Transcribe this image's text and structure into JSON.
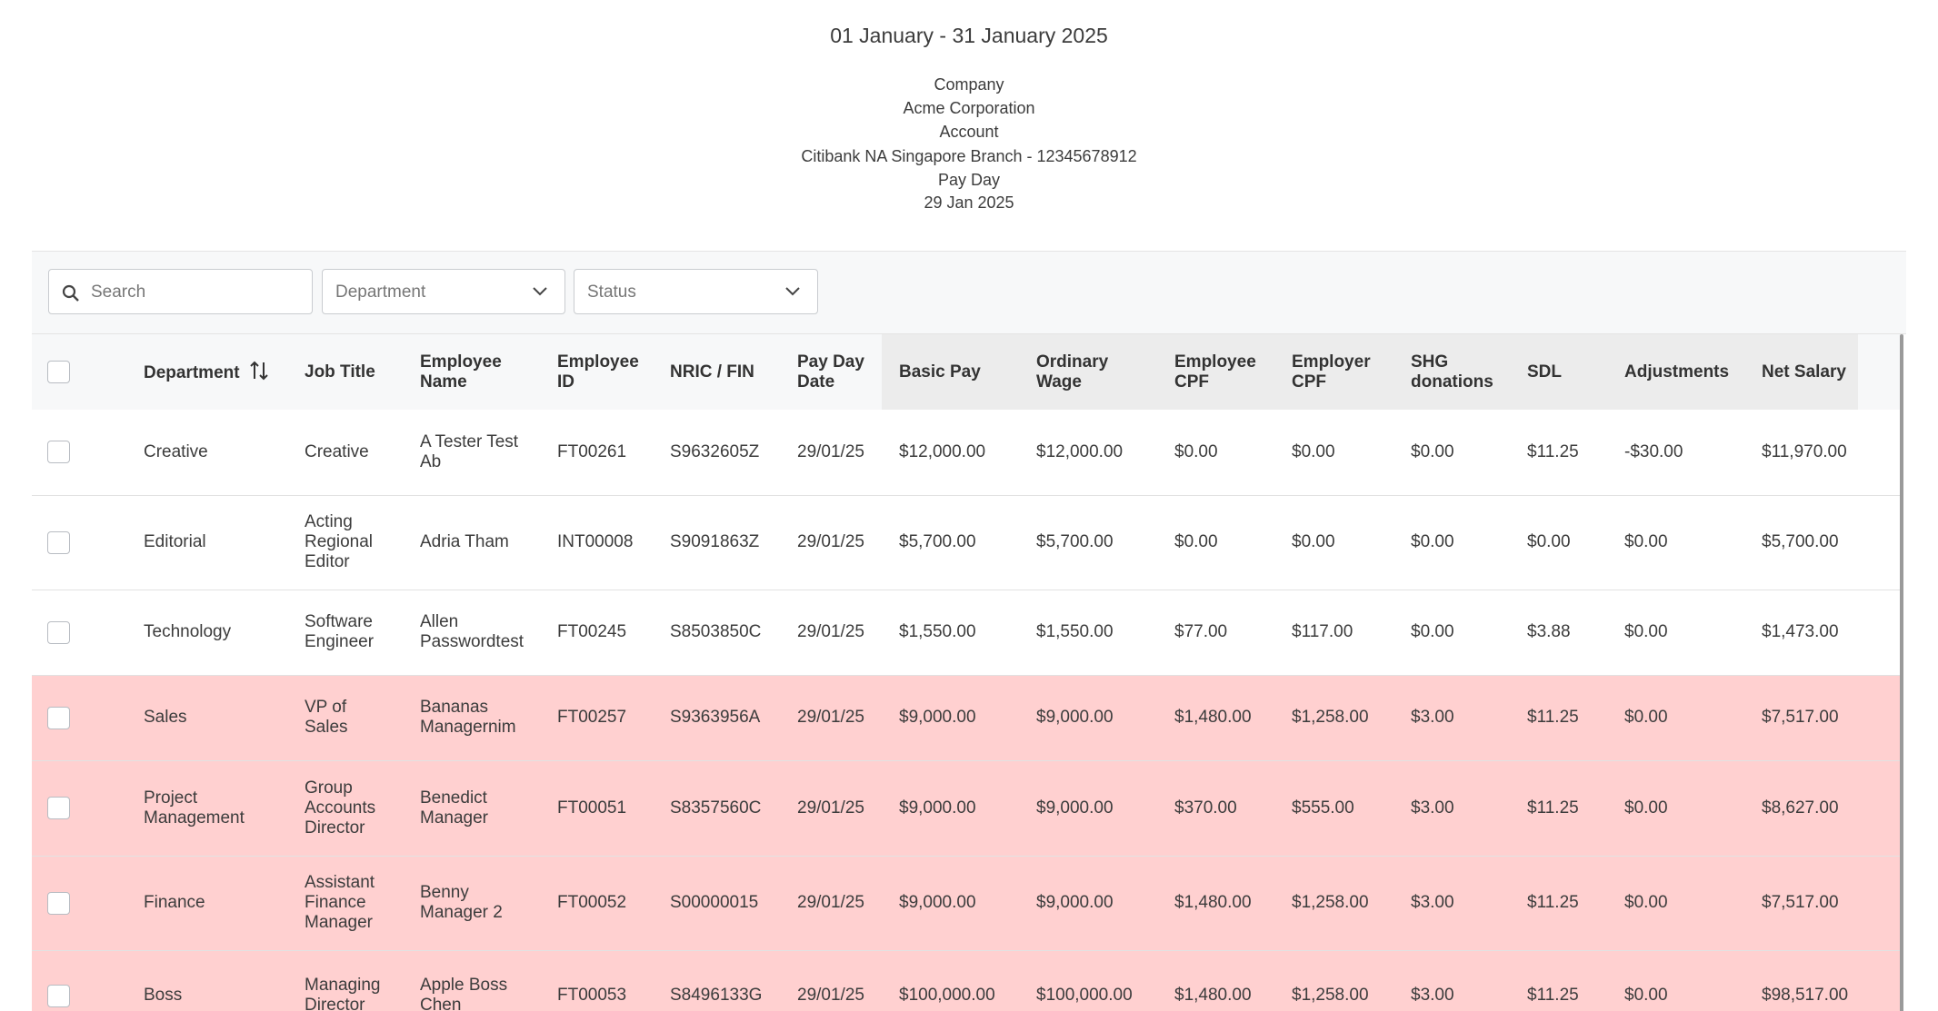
{
  "header": {
    "period": "01 January - 31 January 2025",
    "details": [
      "Company",
      "Acme Corporation",
      "Account",
      "Citibank NA Singapore Branch - 12345678912",
      "Pay Day",
      "29 Jan 2025"
    ]
  },
  "filters": {
    "search": "Search",
    "department": "Department",
    "status": "Status"
  },
  "table": {
    "columns": [
      "Department",
      "Job Title",
      "Employee Name",
      "Employee ID",
      "NRIC / FIN",
      "Pay Day Date",
      "Basic Pay",
      "Ordinary Wage",
      "Employee CPF",
      "Employer CPF",
      "SHG donations",
      "SDL",
      "Adjustments",
      "Net Salary"
    ],
    "rows": [
      [
        "Creative",
        "Creative",
        "A Tester Test Ab",
        "FT00261",
        "S9632605Z",
        "29/01/25",
        "$12,000.00",
        "$12,000.00",
        "$0.00",
        "$0.00",
        "$0.00",
        "$11.25",
        "-$30.00",
        "$11,970.00"
      ],
      [
        "Editorial",
        "Acting Regional Editor",
        "Adria Tham",
        "INT00008",
        "S9091863Z",
        "29/01/25",
        "$5,700.00",
        "$5,700.00",
        "$0.00",
        "$0.00",
        "$0.00",
        "$0.00",
        "$0.00",
        "$5,700.00"
      ],
      [
        "Technology",
        "Software Engineer",
        "Allen Passwordtest",
        "FT00245",
        "S8503850C",
        "29/01/25",
        "$1,550.00",
        "$1,550.00",
        "$77.00",
        "$117.00",
        "$0.00",
        "$3.88",
        "$0.00",
        "$1,473.00"
      ],
      [
        "Sales",
        "VP of Sales",
        "Bananas Managernim",
        "FT00257",
        "S9363956A",
        "29/01/25",
        "$9,000.00",
        "$9,000.00",
        "$1,480.00",
        "$1,258.00",
        "$3.00",
        "$11.25",
        "$0.00",
        "$7,517.00"
      ],
      [
        "Project Management",
        "Group Accounts Director",
        "Benedict Manager",
        "FT00051",
        "S8357560C",
        "29/01/25",
        "$9,000.00",
        "$9,000.00",
        "$370.00",
        "$555.00",
        "$3.00",
        "$11.25",
        "$0.00",
        "$8,627.00"
      ],
      [
        "Finance",
        "Assistant Finance Manager",
        "Benny Manager 2",
        "FT00052",
        "S00000015",
        "29/01/25",
        "$9,000.00",
        "$9,000.00",
        "$1,480.00",
        "$1,258.00",
        "$3.00",
        "$11.25",
        "$0.00",
        "$7,517.00"
      ],
      [
        "Boss",
        "Managing Director",
        "Apple Boss Chen",
        "FT00053",
        "S8496133G",
        "29/01/25",
        "$100,000.00",
        "$100,000.00",
        "$1,480.00",
        "$1,258.00",
        "$3.00",
        "$11.25",
        "$0.00",
        "$98,517.00"
      ]
    ],
    "highlighted_from": 3
  }
}
